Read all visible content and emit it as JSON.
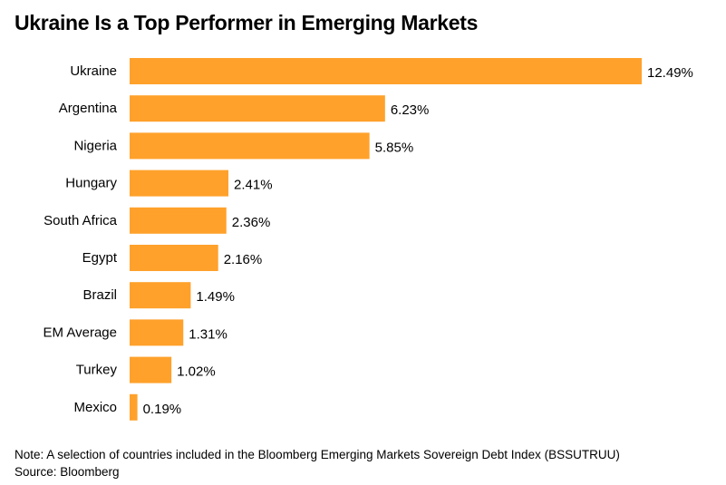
{
  "chart_data": {
    "type": "bar",
    "orientation": "horizontal",
    "title": "Ukraine Is a Top Performer in Emerging Markets",
    "categories": [
      "Ukraine",
      "Argentina",
      "Nigeria",
      "Hungary",
      "South Africa",
      "Egypt",
      "Brazil",
      "EM Average",
      "Turkey",
      "Mexico"
    ],
    "values": [
      12.49,
      6.23,
      5.85,
      2.41,
      2.36,
      2.16,
      1.49,
      1.31,
      1.02,
      0.19
    ],
    "value_labels": [
      "12.49%",
      "6.23%",
      "5.85%",
      "2.41%",
      "2.36%",
      "2.16%",
      "1.49%",
      "1.31%",
      "1.02%",
      "0.19%"
    ],
    "unit": "%",
    "bar_color": "#FFA12B",
    "xlim": [
      0,
      12.49
    ],
    "grid": false,
    "legend": "none"
  },
  "footer": {
    "note": "Note: A selection of countries included in the Bloomberg Emerging Markets Sovereign Debt Index (BSSUTRUU)",
    "source": "Source: Bloomberg"
  }
}
